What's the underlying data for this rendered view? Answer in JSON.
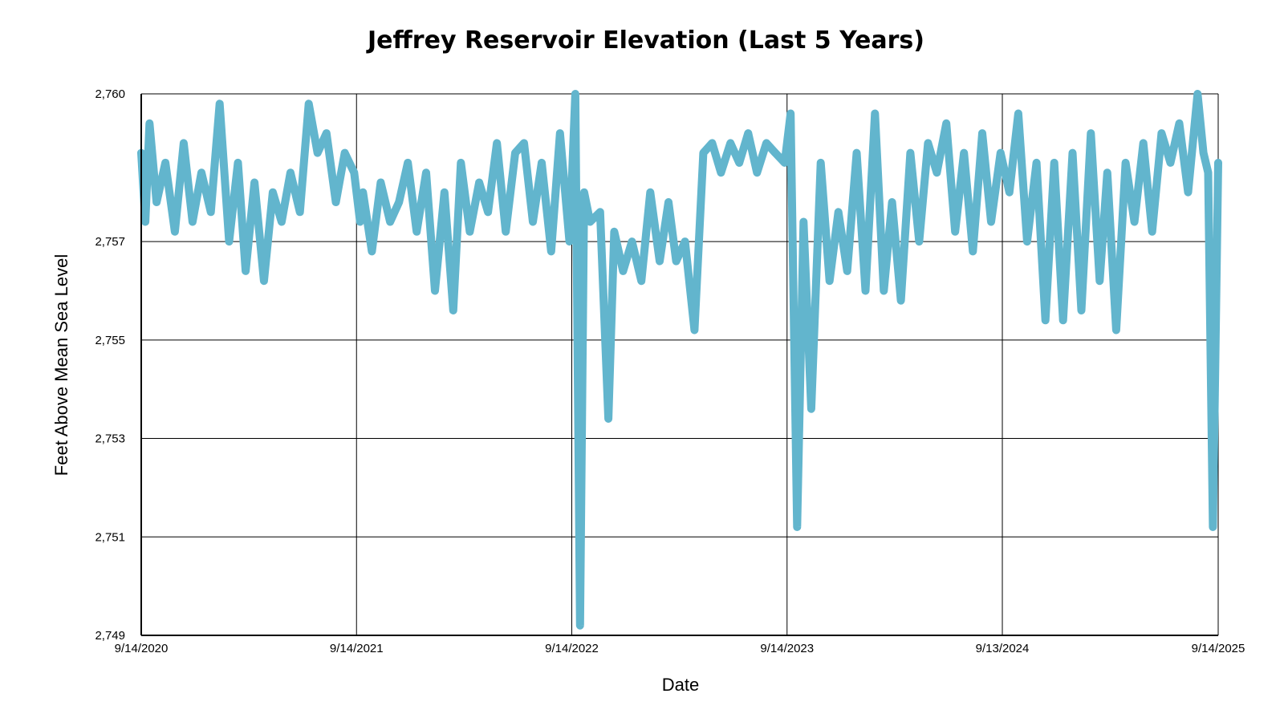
{
  "chart_data": {
    "type": "line",
    "title": "Jeffrey Reservoir Elevation (Last 5 Years)",
    "xlabel": "Date",
    "ylabel": "Feet Above Mean Sea Level",
    "ylim": [
      2749,
      2760
    ],
    "xlim": [
      "2020-09-14",
      "2025-09-14"
    ],
    "x_ticks": [
      {
        "date": "2020-09-14",
        "label": "9/14/2020"
      },
      {
        "date": "2021-09-14",
        "label": "9/14/2021"
      },
      {
        "date": "2022-09-14",
        "label": "9/14/2022"
      },
      {
        "date": "2023-09-14",
        "label": "9/14/2023"
      },
      {
        "date": "2024-09-13",
        "label": "9/13/2024"
      },
      {
        "date": "2025-09-14",
        "label": "9/14/2025"
      }
    ],
    "y_ticks": [
      {
        "value": 2749,
        "label": "2,749"
      },
      {
        "value": 2751,
        "label": "2,751"
      },
      {
        "value": 2753,
        "label": "2,753"
      },
      {
        "value": 2755,
        "label": "2,755"
      },
      {
        "value": 2757,
        "label": "2,757"
      },
      {
        "value": 2760,
        "label": "2,760"
      }
    ],
    "grid": true,
    "legend": "none",
    "series_color": "#62b5cd",
    "series": [
      {
        "x": [
          "2020-09-14",
          "2020-09-21",
          "2020-09-28",
          "2020-10-10",
          "2020-10-25",
          "2020-11-10",
          "2020-11-25",
          "2020-12-10",
          "2020-12-25",
          "2021-01-10",
          "2021-01-25",
          "2021-02-10",
          "2021-02-25",
          "2021-03-10",
          "2021-03-25",
          "2021-04-10",
          "2021-04-25",
          "2021-05-10",
          "2021-05-25",
          "2021-06-10",
          "2021-06-25",
          "2021-07-10",
          "2021-07-25",
          "2021-08-10",
          "2021-08-25",
          "2021-09-10",
          "2021-09-20",
          "2021-09-25",
          "2021-10-10",
          "2021-10-25",
          "2021-11-10",
          "2021-11-25",
          "2021-12-10",
          "2021-12-25",
          "2022-01-10",
          "2022-01-25",
          "2022-02-10",
          "2022-02-25",
          "2022-03-10",
          "2022-03-25",
          "2022-04-10",
          "2022-04-25",
          "2022-05-10",
          "2022-05-25",
          "2022-06-10",
          "2022-06-25",
          "2022-07-10",
          "2022-07-25",
          "2022-08-10",
          "2022-08-25",
          "2022-09-10",
          "2022-09-20",
          "2022-09-28",
          "2022-10-05",
          "2022-10-15",
          "2022-11-01",
          "2022-11-15",
          "2022-11-25",
          "2022-12-10",
          "2022-12-25",
          "2023-01-10",
          "2023-01-25",
          "2023-02-10",
          "2023-02-25",
          "2023-03-10",
          "2023-03-25",
          "2023-04-10",
          "2023-04-25",
          "2023-05-10",
          "2023-05-25",
          "2023-06-10",
          "2023-06-25",
          "2023-07-10",
          "2023-07-25",
          "2023-08-10",
          "2023-08-25",
          "2023-09-10",
          "2023-09-20",
          "2023-10-01",
          "2023-10-12",
          "2023-10-25",
          "2023-11-10",
          "2023-11-25",
          "2023-12-10",
          "2023-12-25",
          "2024-01-10",
          "2024-01-25",
          "2024-02-10",
          "2024-02-25",
          "2024-03-10",
          "2024-03-25",
          "2024-04-10",
          "2024-04-25",
          "2024-05-10",
          "2024-05-25",
          "2024-06-10",
          "2024-06-25",
          "2024-07-10",
          "2024-07-25",
          "2024-08-10",
          "2024-08-25",
          "2024-09-10",
          "2024-09-25",
          "2024-10-10",
          "2024-10-25",
          "2024-11-10",
          "2024-11-25",
          "2024-12-10",
          "2024-12-25",
          "2025-01-10",
          "2025-01-25",
          "2025-02-10",
          "2025-02-25",
          "2025-03-10",
          "2025-03-25",
          "2025-04-10",
          "2025-04-25",
          "2025-05-10",
          "2025-05-25",
          "2025-06-10",
          "2025-06-25",
          "2025-07-10",
          "2025-07-25",
          "2025-08-10",
          "2025-08-20",
          "2025-08-28",
          "2025-09-05",
          "2025-09-14"
        ],
        "y": [
          2758.8,
          2757.4,
          2759.4,
          2757.8,
          2758.6,
          2757.2,
          2759.0,
          2757.4,
          2758.4,
          2757.6,
          2759.8,
          2757.0,
          2758.6,
          2756.4,
          2758.2,
          2756.2,
          2758.0,
          2757.4,
          2758.4,
          2757.6,
          2759.8,
          2758.8,
          2759.2,
          2757.8,
          2758.8,
          2758.4,
          2757.4,
          2758.0,
          2756.8,
          2758.2,
          2757.4,
          2757.8,
          2758.6,
          2757.2,
          2758.4,
          2756.0,
          2758.0,
          2755.6,
          2758.6,
          2757.2,
          2758.2,
          2757.6,
          2759.0,
          2757.2,
          2758.8,
          2759.0,
          2757.4,
          2758.6,
          2756.8,
          2759.2,
          2757.0,
          2760.0,
          2749.2,
          2758.0,
          2757.4,
          2757.6,
          2753.4,
          2757.2,
          2756.4,
          2757.0,
          2756.2,
          2758.0,
          2756.6,
          2757.8,
          2756.6,
          2757.0,
          2755.2,
          2758.8,
          2759.0,
          2758.4,
          2759.0,
          2758.6,
          2759.2,
          2758.4,
          2759.0,
          2758.8,
          2758.6,
          2759.6,
          2751.2,
          2757.4,
          2753.6,
          2758.6,
          2756.2,
          2757.6,
          2756.4,
          2758.8,
          2756.0,
          2759.6,
          2756.0,
          2757.8,
          2755.8,
          2758.8,
          2757.0,
          2759.0,
          2758.4,
          2759.4,
          2757.2,
          2758.8,
          2756.8,
          2759.2,
          2757.4,
          2758.8,
          2758.0,
          2759.6,
          2757.0,
          2758.6,
          2755.4,
          2758.6,
          2755.4,
          2758.8,
          2755.6,
          2759.2,
          2756.2,
          2758.4,
          2755.2,
          2758.6,
          2757.4,
          2759.0,
          2757.2,
          2759.2,
          2758.6,
          2759.4,
          2758.0,
          2760.0,
          2758.8,
          2758.4,
          2751.2,
          2758.6
        ]
      }
    ]
  }
}
